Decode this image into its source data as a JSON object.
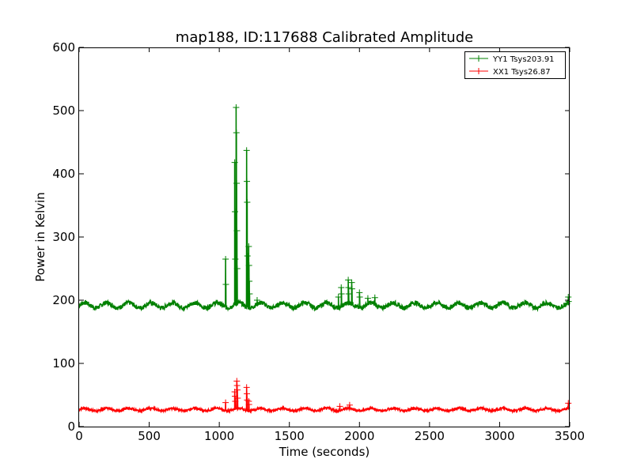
{
  "chart_data": {
    "type": "line",
    "title": "map188, ID:117688 Calibrated Amplitude",
    "xlabel": "Time (seconds)",
    "ylabel": "Power in Kelvin",
    "xlim": [
      0,
      3500
    ],
    "ylim": [
      0,
      600
    ],
    "xticks": [
      "0",
      "500",
      "1000",
      "1500",
      "2000",
      "2500",
      "3000",
      "3500"
    ],
    "yticks": [
      "0",
      "100",
      "200",
      "300",
      "400",
      "500",
      "600"
    ],
    "grid": false,
    "legend_position": "top-right",
    "series": [
      {
        "name": "YY1 Tsys203.91",
        "color": "#008000",
        "baseline": 192,
        "noise": 5,
        "spikes": [
          {
            "x": 1045,
            "values": [
              265,
              225
            ]
          },
          {
            "x": 1110,
            "values": [
              418,
              340,
              265
            ]
          },
          {
            "x": 1120,
            "values": [
              505,
              465,
              385,
              310,
              250
            ]
          },
          {
            "x": 1195,
            "values": [
              437,
              388,
              355,
              270
            ]
          },
          {
            "x": 1210,
            "values": [
              285,
              255,
              230,
              210
            ]
          },
          {
            "x": 1270,
            "values": [
              200
            ]
          },
          {
            "x": 1850,
            "values": [
              205
            ]
          },
          {
            "x": 1870,
            "values": [
              220,
              210
            ]
          },
          {
            "x": 1920,
            "values": [
              232,
              220,
              210
            ]
          },
          {
            "x": 1945,
            "values": [
              228,
              218
            ]
          },
          {
            "x": 2000,
            "values": [
              212,
              205
            ]
          },
          {
            "x": 2060,
            "values": [
              203
            ]
          },
          {
            "x": 2110,
            "values": [
              204
            ]
          },
          {
            "x": 3490,
            "values": [
              205,
              198
            ]
          }
        ]
      },
      {
        "name": "XX1 Tsys26.87",
        "color": "#ff0000",
        "baseline": 27,
        "noise": 2.5,
        "spikes": [
          {
            "x": 1045,
            "values": [
              38
            ]
          },
          {
            "x": 1110,
            "values": [
              55,
              48,
              40
            ]
          },
          {
            "x": 1125,
            "values": [
              72,
              65,
              58,
              45
            ]
          },
          {
            "x": 1195,
            "values": [
              62,
              52,
              42
            ]
          },
          {
            "x": 1210,
            "values": [
              40,
              35
            ]
          },
          {
            "x": 1860,
            "values": [
              32
            ]
          },
          {
            "x": 1930,
            "values": [
              34
            ]
          },
          {
            "x": 3490,
            "values": [
              37
            ]
          }
        ]
      }
    ]
  }
}
